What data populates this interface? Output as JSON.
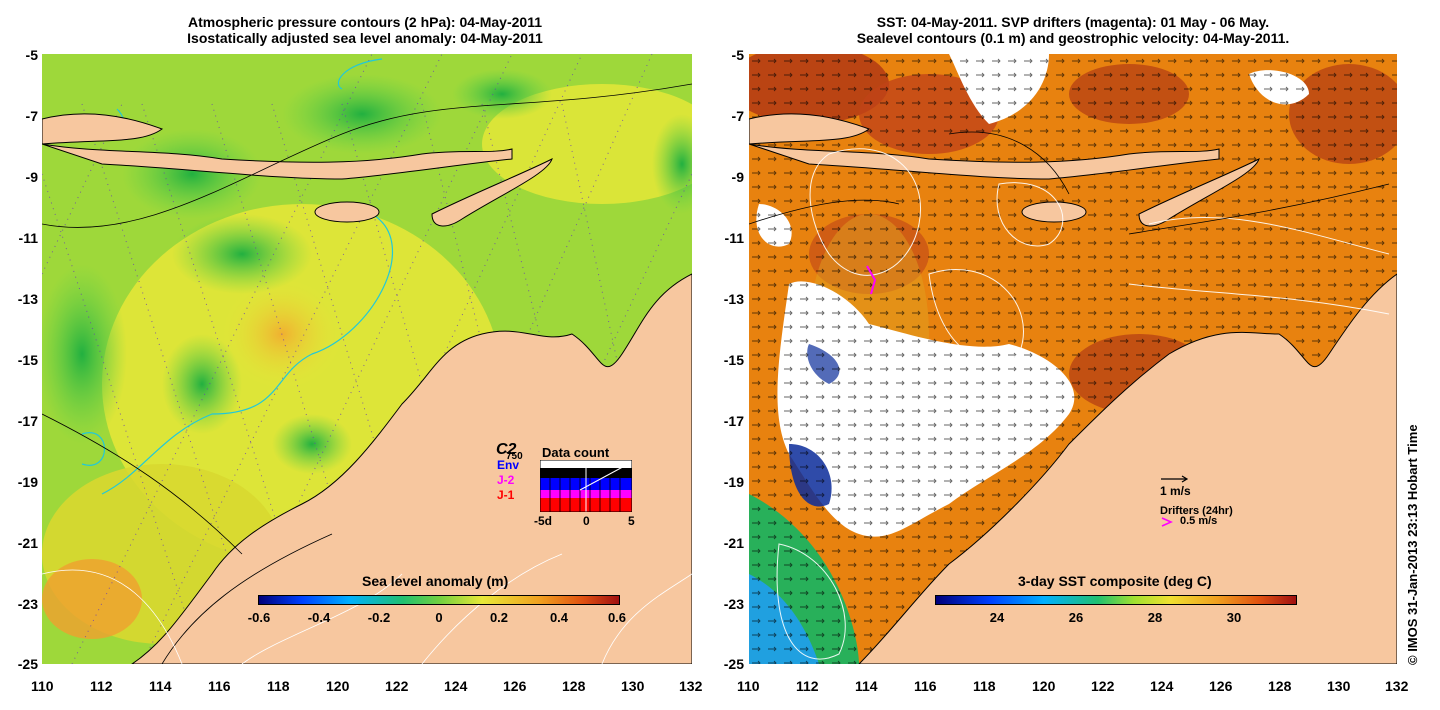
{
  "left_map": {
    "title_line1": "Atmospheric pressure contours (2 hPa): 04-May-2011",
    "title_line2": "Isostatically adjusted sea level anomaly: 04-May-2011",
    "x_ticks": [
      "110",
      "112",
      "114",
      "116",
      "118",
      "120",
      "122",
      "124",
      "126",
      "128",
      "130",
      "132"
    ],
    "y_ticks": [
      "-5",
      "-7",
      "-9",
      "-11",
      "-13",
      "-15",
      "-17",
      "-19",
      "-21",
      "-23",
      "-25"
    ],
    "colorbar_title": "Sea level anomaly (m)",
    "colorbar_ticks": [
      "-0.6",
      "-0.4",
      "-0.2",
      "0",
      "0.2",
      "0.4",
      "0.6"
    ],
    "colorbar_range": [
      -0.6,
      0.6
    ],
    "legend": {
      "c2_label": "C2",
      "c2_number": "750",
      "env_label": "Env",
      "j2_label": "J-2",
      "j1_label": "J-1",
      "data_count_title": "Data count",
      "axis_min": "-5d",
      "axis_mid": "0",
      "axis_max": "5",
      "color_c2": "#000000",
      "color_env": "#0000ff",
      "color_j2": "#ff00ff",
      "color_j1": "#ff0000"
    }
  },
  "right_map": {
    "title_line1": "SST: 04-May-2011. SVP drifters (magenta): 01 May - 06 May.",
    "title_line2": "Sealevel contours (0.1 m) and geostrophic velocity: 04-May-2011.",
    "x_ticks": [
      "110",
      "112",
      "114",
      "116",
      "118",
      "120",
      "122",
      "124",
      "126",
      "128",
      "130",
      "132"
    ],
    "y_ticks": [
      "-5",
      "-7",
      "-9",
      "-11",
      "-13",
      "-15",
      "-17",
      "-19",
      "-21",
      "-23",
      "-25"
    ],
    "colorbar_title": "3-day SST composite (deg C)",
    "colorbar_ticks": [
      "24",
      "26",
      "28",
      "30"
    ],
    "colorbar_range": [
      22.5,
      31
    ],
    "velocity_scale_label": "1 m/s",
    "drifters_label": "Drifters (24hr)",
    "drifter_scale_label": "0.5 m/s"
  },
  "credit": "© IMOS 31-Jan-2013 23:13 Hobart Time",
  "colors": {
    "land": "#f7c79f",
    "sla_green": "#5fd24a",
    "sla_yellow": "#e8e838",
    "sst_orange": "#e87d12",
    "sst_darkred": "#b23a14",
    "cloud": "#ffffff",
    "drifter": "#ff00ff"
  }
}
